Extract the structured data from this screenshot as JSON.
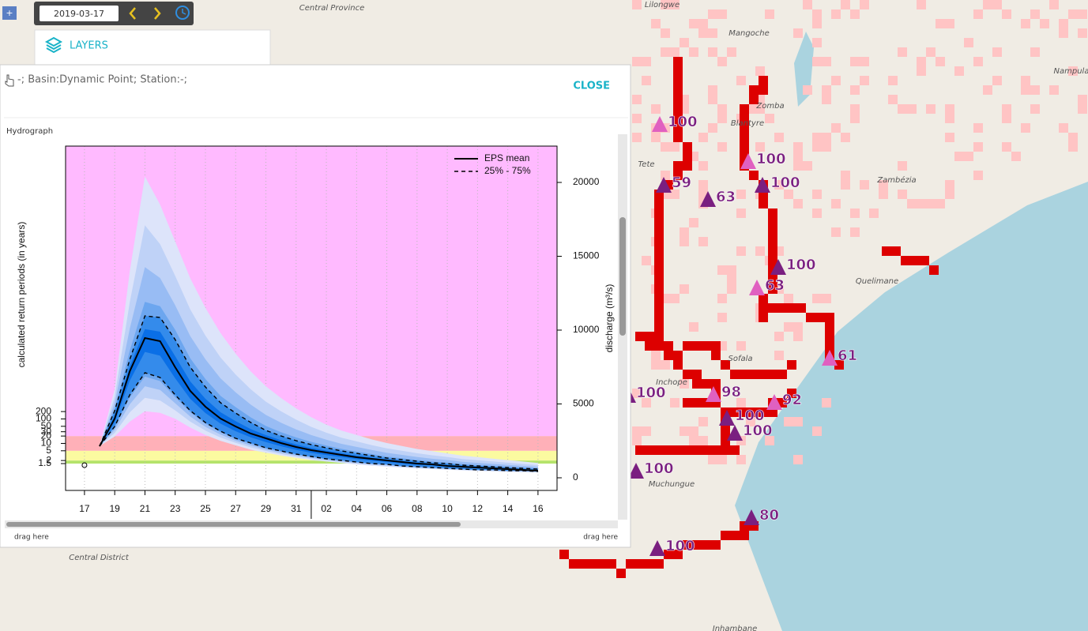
{
  "toolbar": {
    "date": "2019-03-17",
    "zoom": "+"
  },
  "layers": {
    "title": "LAYERS"
  },
  "popup": {
    "header": "-; Basin:Dynamic Point; Station:-;",
    "close": "CLOSE",
    "drag_left": "drag here",
    "drag_right": "drag here"
  },
  "map": {
    "places": [
      "Lilongwe",
      "Central Province",
      "Mangoche",
      "Zomba",
      "Blantyre",
      "Tete",
      "Zambézia",
      "Nampula",
      "Quelimane",
      "Sofala",
      "Inchope",
      "Muchungue",
      "Central District",
      "Inhambane"
    ],
    "markers": [
      "100",
      "59",
      "63",
      "100",
      "100",
      "100",
      "98",
      "100",
      "100",
      "92",
      "80",
      "100",
      "61",
      "100",
      "100",
      "63"
    ]
  },
  "chart_data": {
    "type": "line",
    "title": "Hydrograph",
    "y_label": "discharge (m³/s)",
    "y2_label": "calculated return periods (in years)",
    "x": [
      1,
      2,
      3,
      4,
      5,
      6,
      7,
      8,
      9,
      10,
      11,
      12,
      13,
      14,
      15,
      16,
      17,
      18,
      19,
      20,
      21,
      22,
      23,
      24,
      25,
      26,
      27,
      28,
      29,
      30
    ],
    "xlim": [
      -1.25,
      31.26
    ],
    "xticks": [
      {
        "value": 0,
        "label": "17"
      },
      {
        "value": 2,
        "label": "19"
      },
      {
        "value": 4,
        "label": "21"
      },
      {
        "value": 6,
        "label": "23"
      },
      {
        "value": 8,
        "label": "25"
      },
      {
        "value": 10,
        "label": "27"
      },
      {
        "value": 12,
        "label": "29"
      },
      {
        "value": 14,
        "label": "31"
      },
      {
        "value": 16,
        "label": "02"
      },
      {
        "value": 18,
        "label": "04"
      },
      {
        "value": 20,
        "label": "06"
      },
      {
        "value": 22,
        "label": "08"
      },
      {
        "value": 24,
        "label": "10"
      },
      {
        "value": 26,
        "label": "12"
      },
      {
        "value": 28,
        "label": "14"
      },
      {
        "value": 30,
        "label": "16"
      }
    ],
    "ylim": [
      -856,
      22460
    ],
    "yticks": [
      0,
      5000,
      10000,
      15000,
      20000
    ],
    "y2log": true,
    "y2lim": [
      0.12,
      14000000000000
    ],
    "y2ticks": [
      1.5,
      2,
      5,
      10,
      20,
      30,
      50,
      100,
      200
    ],
    "bands": [
      {
        "from": 1.5,
        "to": 2,
        "color": "#b4e36a"
      },
      {
        "from": 2,
        "to": 5,
        "color": "#fbfaa0"
      },
      {
        "from": 5,
        "to": 20,
        "color": "#ffb0b8"
      },
      {
        "from": 20,
        "to": 14000000000000,
        "color": "#ffbaff"
      }
    ],
    "grid": true,
    "legend": "top-right",
    "series": [
      {
        "name": "EPS mean",
        "color": "#000000",
        "dash": false,
        "values": [
          2139,
          4011,
          7219,
          9465,
          9251,
          7487,
          5882,
          4813,
          4011,
          3476,
          2995,
          2674,
          2353,
          2086,
          1872,
          1711,
          1551,
          1390,
          1283,
          1176,
          1070,
          963,
          909,
          802,
          749,
          695,
          642,
          588,
          535,
          481
        ]
      },
      {
        "name": "25% - 75%",
        "color": "#000000",
        "dash": true,
        "values": [
          2139,
          4545,
          8021,
          10963,
          10856,
          9358,
          7487,
          6150,
          5080,
          4385,
          3743,
          3209,
          2834,
          2513,
          2246,
          2032,
          1818,
          1658,
          1497,
          1337,
          1230,
          1123,
          1016,
          963,
          856,
          802,
          749,
          695,
          642,
          588
        ]
      },
      {
        "color": "#000000",
        "dash": true,
        "values": [
          2139,
          3476,
          5615,
          7112,
          6791,
          5615,
          4545,
          3743,
          3155,
          2674,
          2353,
          2032,
          1818,
          1604,
          1444,
          1283,
          1176,
          1070,
          963,
          909,
          802,
          749,
          695,
          642,
          588,
          535,
          535,
          481,
          481,
          428
        ]
      }
    ],
    "envelope": {
      "color": "#dde4fa",
      "upper": [
        2139,
        6000,
        14000,
        20400,
        18500,
        16000,
        13500,
        11500,
        9800,
        8400,
        7200,
        6200,
        5400,
        4700,
        4100,
        3600,
        3200,
        2900,
        2600,
        2350,
        2150,
        1950,
        1800,
        1650,
        1500,
        1400,
        1300,
        1200,
        1100,
        1000
      ],
      "lower": [
        2139,
        2800,
        3800,
        4500,
        4400,
        4000,
        3400,
        2900,
        2500,
        2200,
        1900,
        1700,
        1500,
        1350,
        1200,
        1100,
        1000,
        900,
        820,
        750,
        690,
        630,
        580,
        540,
        500,
        460,
        430,
        400,
        370,
        350
      ]
    },
    "observed": {
      "x": 0,
      "value": 856
    }
  }
}
